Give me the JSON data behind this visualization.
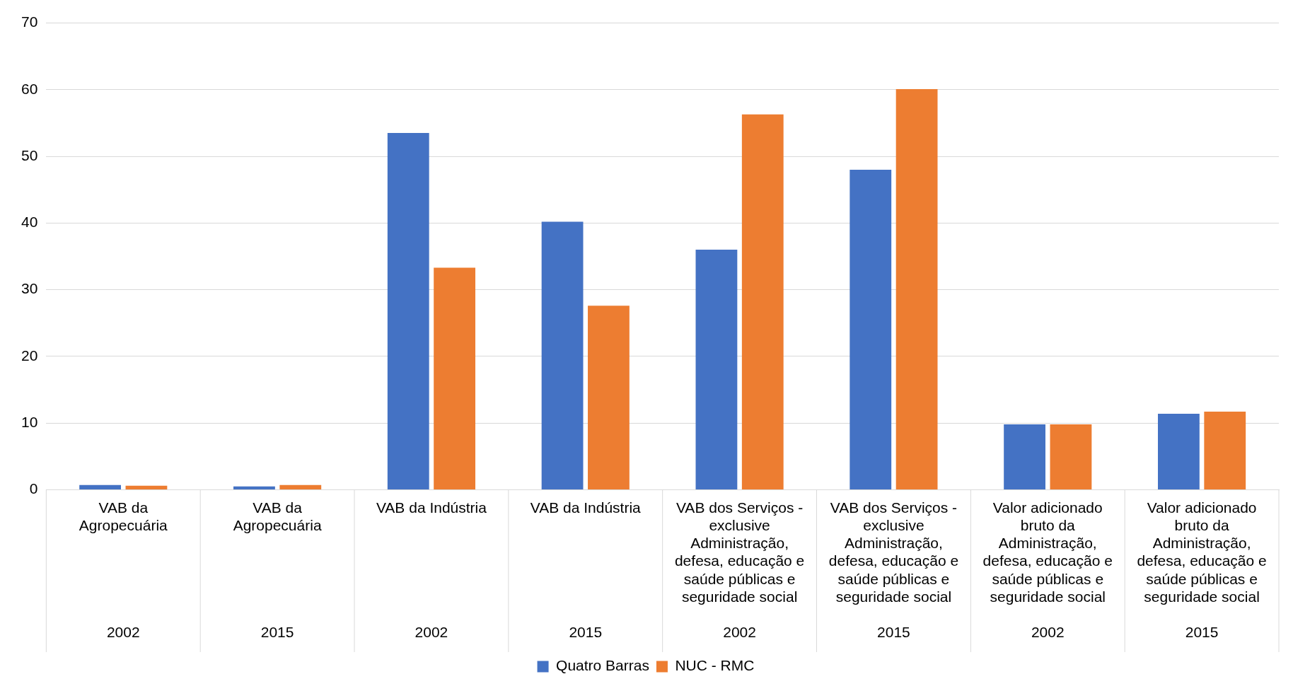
{
  "chart_data": {
    "type": "bar",
    "categories": [
      "VAB da Agropecuária\n2002",
      "VAB da Agropecuária\n2015",
      "VAB da Indústria\n2002",
      "VAB da Indústria\n2015",
      "VAB dos Serviços - exclusive Administração, defesa, educação e saúde públicas e seguridade social\n2002",
      "VAB dos Serviços - exclusive Administração, defesa, educação e saúde públicas e seguridade social\n2015",
      "Valor adicionado bruto da Administração, defesa, educação e saúde públicas e seguridade social\n2002",
      "Valor adicionado bruto da Administração, defesa, educação e saúde públicas e seguridade social\n2015"
    ],
    "series": [
      {
        "name": "Quatro Barras",
        "color": "#4472c4",
        "values": [
          0.7,
          0.5,
          53.5,
          40.2,
          36,
          48,
          9.8,
          11.4
        ]
      },
      {
        "name": "NUC - RMC",
        "color": "#ed7d31",
        "values": [
          0.6,
          0.7,
          33.3,
          27.6,
          56.3,
          60.1,
          9.8,
          11.7
        ]
      }
    ],
    "ylim": [
      0,
      70
    ],
    "yticks": [
      0,
      10,
      20,
      30,
      40,
      50,
      60,
      70
    ],
    "grid": "y",
    "legend": "bottom"
  }
}
